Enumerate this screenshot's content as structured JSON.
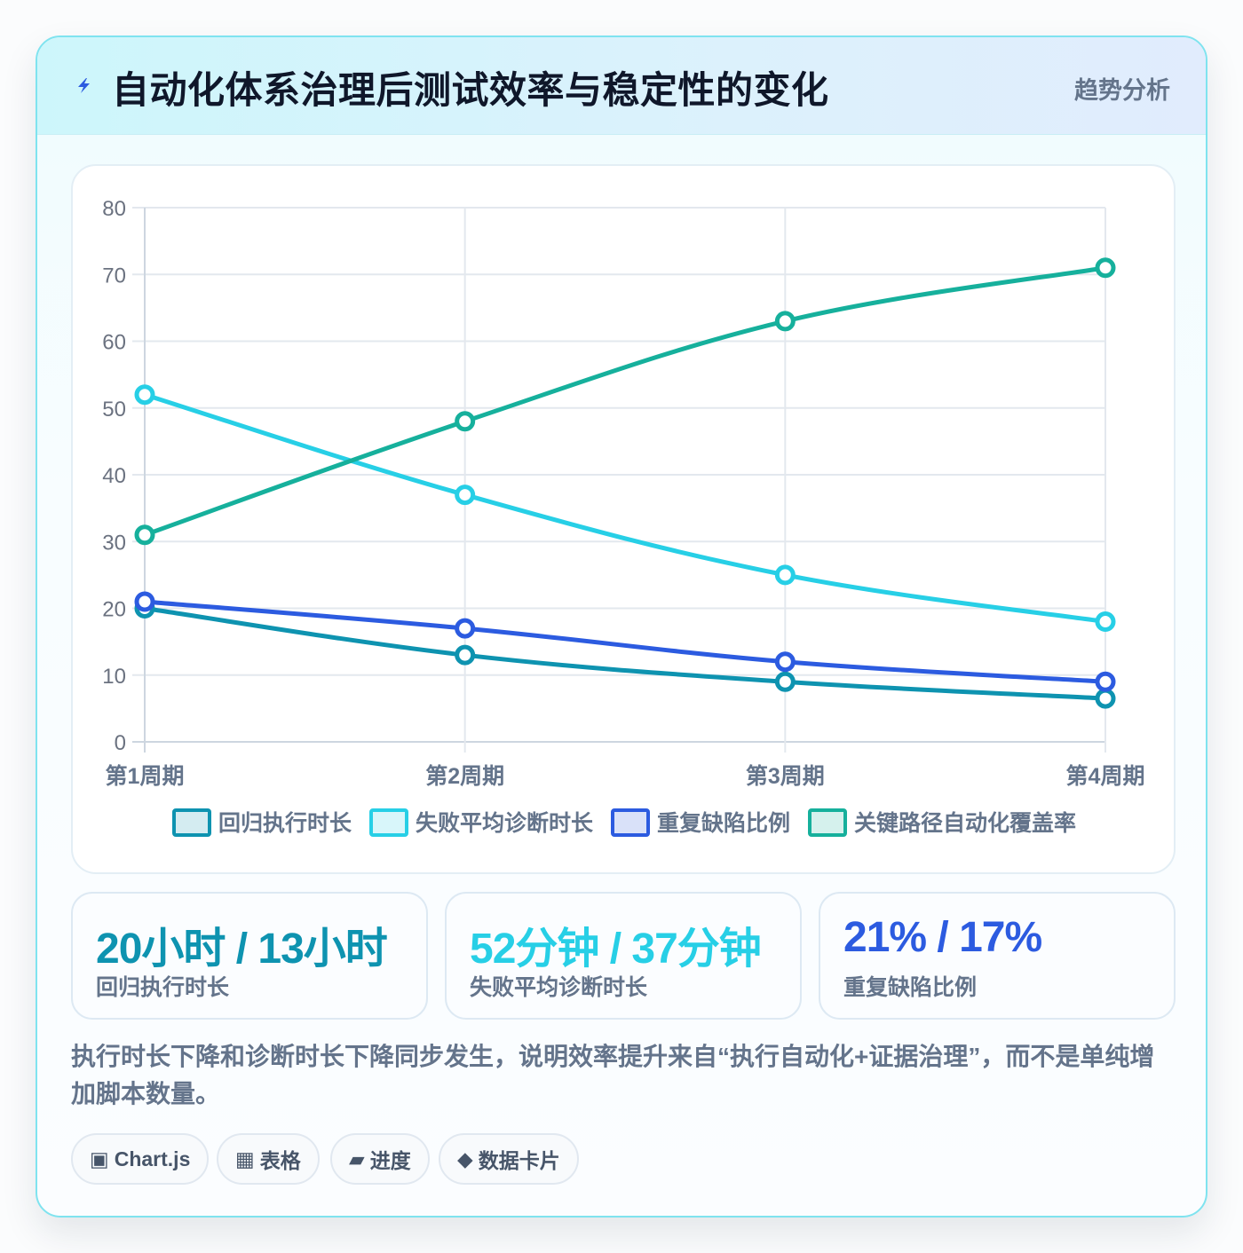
{
  "header": {
    "title": "自动化体系治理后测试效率与稳定性的变化",
    "tag": "趋势分析",
    "icon": "bolt-icon"
  },
  "chart_data": {
    "type": "line",
    "categories": [
      "第1周期",
      "第2周期",
      "第3周期",
      "第4周期"
    ],
    "ylim": [
      0,
      80
    ],
    "yticks": [
      "0",
      "10",
      "20",
      "30",
      "40",
      "50",
      "60",
      "70",
      "80"
    ],
    "grid": true,
    "legend_position": "bottom",
    "series": [
      {
        "name": "回归执行时长",
        "values": [
          20,
          13,
          9,
          6.5
        ],
        "color": "#0e93b0"
      },
      {
        "name": "失败平均诊断时长",
        "values": [
          52,
          37,
          25,
          18
        ],
        "color": "#27cfe6"
      },
      {
        "name": "重复缺陷比例",
        "values": [
          21,
          17,
          12,
          9
        ],
        "color": "#2c5be0"
      },
      {
        "name": "关键路径自动化覆盖率",
        "values": [
          31,
          48,
          63,
          71
        ],
        "color": "#16b09c"
      }
    ]
  },
  "stats": [
    {
      "value": "20小时 / 13小时",
      "label": "回归执行时长",
      "color": "#0e93b0"
    },
    {
      "value": "52分钟 / 37分钟",
      "label": "失败平均诊断时长",
      "color": "#27cfe6"
    },
    {
      "value": "21% / 17%",
      "label": "重复缺陷比例",
      "color": "#2c5be0"
    }
  ],
  "summary": "执行时长下降和诊断时长下降同步发生，说明效率提升来自“执行自动化+证据治理”，而不是单纯增加脚本数量。",
  "pills": [
    {
      "icon": "▣",
      "label": "Chart.js"
    },
    {
      "icon": "▦",
      "label": "表格"
    },
    {
      "icon": "▰",
      "label": "进度"
    },
    {
      "icon": "◆",
      "label": "数据卡片"
    }
  ]
}
